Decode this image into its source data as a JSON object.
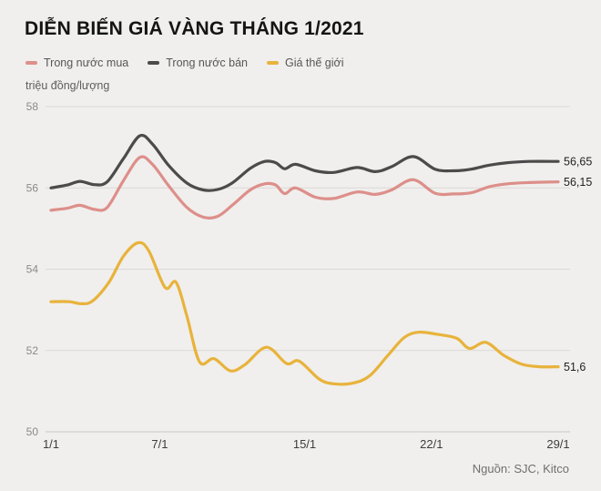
{
  "page": {
    "source": "Nguồn: SJC, Kitco",
    "background": "#f0efed"
  },
  "chart_data": {
    "type": "line",
    "title": "DIỄN BIẾN GIÁ VÀNG THÁNG 1/2021",
    "ylabel": "triệu đồng/lượng",
    "xlabel": "",
    "ylim": [
      50,
      58
    ],
    "yticks": [
      50,
      52,
      54,
      56,
      58
    ],
    "xlim": [
      1,
      29
    ],
    "xticks": [
      {
        "day": 1,
        "label": "1/1"
      },
      {
        "day": 7,
        "label": "7/1"
      },
      {
        "day": 15,
        "label": "15/1"
      },
      {
        "day": 22,
        "label": "22/1"
      },
      {
        "day": 29,
        "label": "29/1"
      }
    ],
    "grid": true,
    "legend_position": "top-left",
    "series": [
      {
        "id": "trong-nuoc-mua",
        "name": "Trong nước mua",
        "color": "#dd8f8a",
        "end_label": "56,15",
        "points": [
          [
            1,
            55.45
          ],
          [
            1.9,
            55.5
          ],
          [
            2.6,
            55.57
          ],
          [
            3.4,
            55.47
          ],
          [
            4.1,
            55.52
          ],
          [
            5,
            56.18
          ],
          [
            5.9,
            56.75
          ],
          [
            6.6,
            56.58
          ],
          [
            7.5,
            56.05
          ],
          [
            8.5,
            55.52
          ],
          [
            9.4,
            55.28
          ],
          [
            10.2,
            55.3
          ],
          [
            11,
            55.57
          ],
          [
            12,
            55.95
          ],
          [
            12.8,
            56.1
          ],
          [
            13.4,
            56.07
          ],
          [
            13.9,
            55.86
          ],
          [
            14.5,
            56.0
          ],
          [
            15.6,
            55.77
          ],
          [
            16.6,
            55.74
          ],
          [
            17.9,
            55.9
          ],
          [
            18.9,
            55.84
          ],
          [
            19.8,
            55.95
          ],
          [
            21,
            56.2
          ],
          [
            22.2,
            55.87
          ],
          [
            23.2,
            55.85
          ],
          [
            24.2,
            55.88
          ],
          [
            25.2,
            56.03
          ],
          [
            26.2,
            56.1
          ],
          [
            27.4,
            56.13
          ],
          [
            29,
            56.15
          ]
        ]
      },
      {
        "id": "trong-nuoc-ban",
        "name": "Trong nước bán",
        "color": "#4c4a4a",
        "end_label": "56,65",
        "points": [
          [
            1,
            56.0
          ],
          [
            1.9,
            56.07
          ],
          [
            2.6,
            56.16
          ],
          [
            3.4,
            56.08
          ],
          [
            4.1,
            56.15
          ],
          [
            5,
            56.72
          ],
          [
            5.9,
            57.28
          ],
          [
            6.6,
            57.08
          ],
          [
            7.5,
            56.55
          ],
          [
            8.5,
            56.12
          ],
          [
            9.4,
            55.95
          ],
          [
            10.2,
            55.96
          ],
          [
            11,
            56.12
          ],
          [
            12,
            56.48
          ],
          [
            12.8,
            56.65
          ],
          [
            13.4,
            56.62
          ],
          [
            13.9,
            56.47
          ],
          [
            14.5,
            56.58
          ],
          [
            15.6,
            56.42
          ],
          [
            16.6,
            56.38
          ],
          [
            17.9,
            56.5
          ],
          [
            18.9,
            56.4
          ],
          [
            19.8,
            56.52
          ],
          [
            21,
            56.77
          ],
          [
            22.2,
            56.46
          ],
          [
            23.2,
            56.42
          ],
          [
            24.2,
            56.46
          ],
          [
            25.2,
            56.56
          ],
          [
            26.2,
            56.62
          ],
          [
            27.4,
            56.65
          ],
          [
            29,
            56.65
          ]
        ]
      },
      {
        "id": "gia-the-gioi",
        "name": "Giá thế giới",
        "color": "#e8b33c",
        "end_label": "51,6",
        "points": [
          [
            1,
            53.2
          ],
          [
            2,
            53.2
          ],
          [
            2.7,
            53.15
          ],
          [
            3.3,
            53.22
          ],
          [
            4.2,
            53.68
          ],
          [
            5,
            54.32
          ],
          [
            5.8,
            54.65
          ],
          [
            6.4,
            54.45
          ],
          [
            7.3,
            53.55
          ],
          [
            7.9,
            53.68
          ],
          [
            8.5,
            52.85
          ],
          [
            9.2,
            51.72
          ],
          [
            10,
            51.8
          ],
          [
            10.9,
            51.5
          ],
          [
            11.7,
            51.65
          ],
          [
            12.9,
            52.08
          ],
          [
            14,
            51.68
          ],
          [
            14.7,
            51.74
          ],
          [
            15.8,
            51.3
          ],
          [
            16.6,
            51.18
          ],
          [
            17.7,
            51.2
          ],
          [
            18.6,
            51.38
          ],
          [
            19.6,
            51.88
          ],
          [
            20.5,
            52.32
          ],
          [
            21.3,
            52.45
          ],
          [
            22.3,
            52.4
          ],
          [
            23.4,
            52.3
          ],
          [
            24.1,
            52.05
          ],
          [
            25,
            52.2
          ],
          [
            26,
            51.88
          ],
          [
            27,
            51.66
          ],
          [
            28,
            51.6
          ],
          [
            29,
            51.6
          ]
        ]
      }
    ]
  }
}
